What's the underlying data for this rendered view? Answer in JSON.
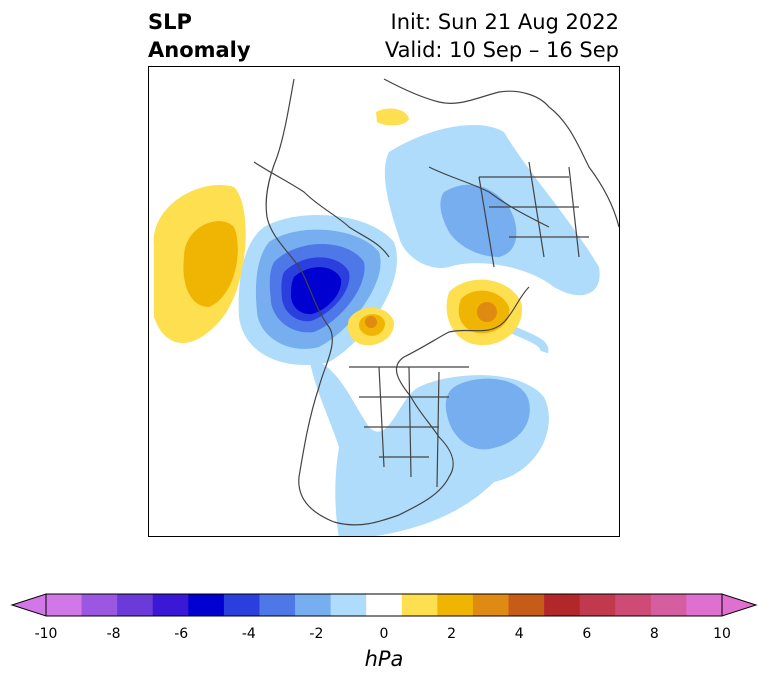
{
  "title": {
    "left_line1": "SLP",
    "left_line2": "Anomaly",
    "init": "Init: Sun 21 Aug 2022",
    "valid": "Valid: 10 Sep – 16 Sep"
  },
  "colorbar": {
    "unit": "hPa",
    "ticks": [
      "-10",
      "-8",
      "-6",
      "-4",
      "-2",
      "0",
      "2",
      "4",
      "6",
      "8",
      "10"
    ],
    "levels": [
      -10,
      -9,
      -8,
      -7,
      -6,
      -5,
      -4,
      -3,
      -2,
      -1,
      1,
      2,
      3,
      4,
      5,
      6,
      7,
      8,
      9,
      10
    ],
    "colors": [
      "#d277e8",
      "#9b57e1",
      "#6a3bd8",
      "#3a18d6",
      "#0000d0",
      "#2b3fdf",
      "#4e78e8",
      "#77aef0",
      "#aedcfa",
      "#ffffff",
      "#fddf4f",
      "#f0b503",
      "#df8a12",
      "#c75b18",
      "#b2282a",
      "#c0394c",
      "#cd4b74",
      "#d55ea1",
      "#e070d0"
    ],
    "under_color": "#d277e8",
    "over_color": "#e070d0"
  }
}
